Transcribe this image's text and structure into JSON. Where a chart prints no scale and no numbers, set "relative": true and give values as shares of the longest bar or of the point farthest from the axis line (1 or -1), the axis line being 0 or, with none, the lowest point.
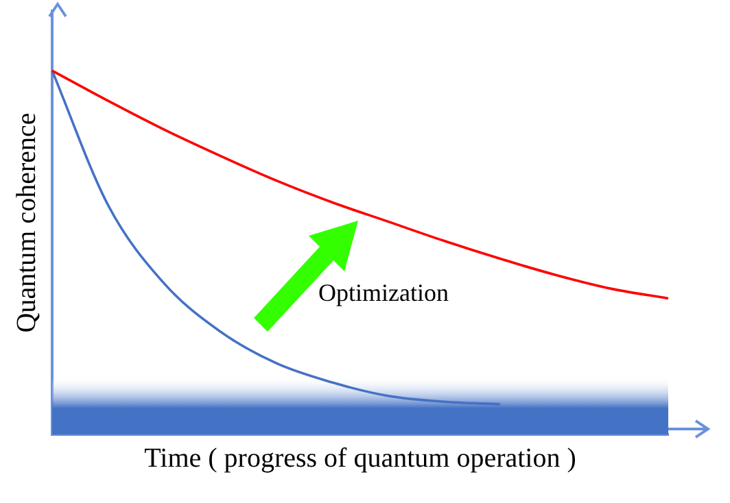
{
  "chart_data": {
    "type": "line",
    "relative": true,
    "xlabel": "Time ( progress of quantum operation )",
    "ylabel": "Quantum coherence",
    "categories": [
      null,
      null,
      null,
      null,
      null,
      null,
      null,
      null,
      null,
      null,
      null,
      null
    ],
    "series": [
      {
        "color": "#ff0000",
        "values": [
          1,
          0.917,
          0.838,
          0.766,
          0.698,
          0.638,
          0.585,
          0.532,
          0.483,
          0.438,
          0.4,
          0.374
        ]
      },
      {
        "color": "#4472c4",
        "values": [
          1,
          0.63,
          0.415,
          0.283,
          0.196,
          0.143,
          0.106,
          0.09,
          0.083,
          null,
          null,
          null
        ]
      }
    ],
    "bands": [
      {
        "axis": "y",
        "from": 0,
        "to": 0.16,
        "color": "#4472c4"
      }
    ],
    "annotations": [
      "Optimization"
    ],
    "grid": false,
    "legend": false,
    "marker": "none",
    "line_style": "solid"
  }
}
